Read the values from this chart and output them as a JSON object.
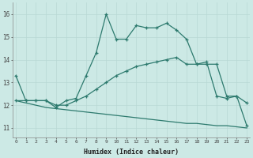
{
  "xlabel": "Humidex (Indice chaleur)",
  "background_color": "#cce9e5",
  "line_color": "#2d7a6e",
  "grid_color": "#b8d8d4",
  "x_ticks": [
    0,
    1,
    2,
    3,
    4,
    5,
    6,
    7,
    8,
    9,
    10,
    11,
    12,
    13,
    14,
    15,
    16,
    17,
    18,
    19,
    20,
    21,
    22,
    23
  ],
  "ylim": [
    10.6,
    16.5
  ],
  "xlim": [
    -0.3,
    23.3
  ],
  "yticks": [
    11,
    12,
    13,
    14,
    15,
    16
  ],
  "line1_x": [
    0,
    1,
    2,
    3,
    4,
    5,
    6,
    7,
    8,
    9,
    10,
    11,
    12,
    13,
    14,
    15,
    16,
    17,
    18,
    19,
    20,
    21,
    22,
    23
  ],
  "line1_y": [
    13.3,
    12.2,
    12.2,
    12.2,
    11.9,
    12.2,
    12.3,
    13.3,
    14.3,
    16.0,
    14.9,
    14.9,
    15.5,
    15.4,
    15.4,
    15.6,
    15.3,
    14.9,
    13.8,
    13.9,
    12.4,
    12.3,
    12.4,
    12.1
  ],
  "line2_x": [
    0,
    1,
    2,
    3,
    4,
    5,
    6,
    7,
    8,
    9,
    10,
    11,
    12,
    13,
    14,
    15,
    16,
    17,
    18,
    19,
    20,
    21,
    22,
    23
  ],
  "line2_y": [
    12.2,
    12.2,
    12.2,
    12.2,
    12.0,
    12.0,
    12.2,
    12.4,
    12.7,
    13.0,
    13.3,
    13.5,
    13.7,
    13.8,
    13.9,
    14.0,
    14.1,
    13.8,
    13.8,
    13.8,
    13.8,
    12.4,
    12.4,
    11.1
  ],
  "line3_x": [
    0,
    1,
    2,
    3,
    4,
    5,
    6,
    7,
    8,
    9,
    10,
    11,
    12,
    13,
    14,
    15,
    16,
    17,
    18,
    19,
    20,
    21,
    22,
    23
  ],
  "line3_y": [
    12.2,
    12.1,
    12.0,
    11.9,
    11.85,
    11.8,
    11.75,
    11.7,
    11.65,
    11.6,
    11.55,
    11.5,
    11.45,
    11.4,
    11.35,
    11.3,
    11.25,
    11.2,
    11.2,
    11.15,
    11.1,
    11.1,
    11.05,
    11.0
  ]
}
